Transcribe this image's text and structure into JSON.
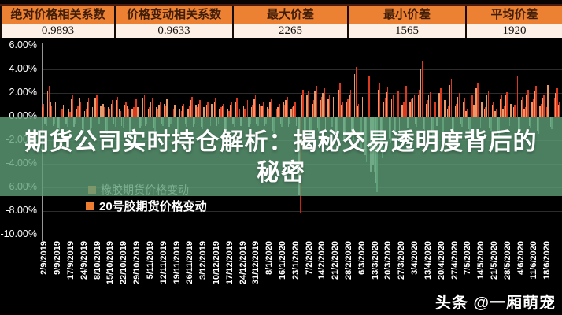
{
  "stats_table": {
    "columns": [
      {
        "label": "绝对价格相关系数",
        "value": "0.9893"
      },
      {
        "label": "价格变动相关系数",
        "value": "0.9633"
      },
      {
        "label": "最大价差",
        "value": "2265"
      },
      {
        "label": "最小价差",
        "value": "1565"
      },
      {
        "label": "平均价差",
        "value": "1920"
      }
    ],
    "header_bg": "#ec8133",
    "value_bg": "#fdf1e7"
  },
  "overlay": {
    "title_line1": "期货公司实时持仓解析：揭秘交易透明度背后的",
    "title_line2": "秘密",
    "band_color": "#5f9e78"
  },
  "watermark": {
    "text": "头条 @一厢萌宠"
  },
  "chart_data": {
    "type": "bar",
    "title": "",
    "xlabel": "",
    "ylabel": "",
    "ylim": [
      -10,
      6
    ],
    "grid": true,
    "legend_position": "bottom-left",
    "ytick_values": [
      6,
      4,
      2,
      0,
      -2,
      -4,
      -6,
      -8,
      -10
    ],
    "ytick_labels": [
      "6.00%",
      "4.00%",
      "2.00%",
      "0.00%",
      "-2.00%",
      "-4.00%",
      "-6.00%",
      "-8.00%",
      "-10.00%"
    ],
    "xtick_labels": [
      "2/9/2019",
      "9/9/2019",
      "17/9/2019",
      "24/9/2019",
      "8/10/2019",
      "15/10/2019",
      "22/10/2019",
      "29/10/2019",
      "5/11/2019",
      "12/11/2019",
      "19/11/2019",
      "26/11/2019",
      "3/12/2019",
      "10/12/2019",
      "17/12/2019",
      "24/12/2019",
      "31/12/2019",
      "8/1/2020",
      "16/1/2020",
      "23/1/2020",
      "7/2/2020",
      "14/2/2020",
      "21/2/2020",
      "28/2/2020",
      "6/3/2020",
      "13/3/2020",
      "20/3/2020",
      "27/3/2020",
      "3/4/2020",
      "13/4/2020",
      "20/4/2020",
      "27/4/2020",
      "7/5/2020",
      "14/5/2020",
      "21/5/2020",
      "28/5/2020",
      "4/6/2020",
      "11/6/2020",
      "18/6/2020"
    ],
    "days_per_tick": 5,
    "series": [
      {
        "name": "橡胶期货价格变动",
        "up_color": "#e69a6b",
        "down_color": "#b7dabc",
        "marker_color": "#ed7d31",
        "values": [
          0.8,
          -0.5,
          2.2,
          1.2,
          -0.7,
          1.2,
          -0.9,
          0.9,
          1.0,
          -0.6,
          0.6,
          1.5,
          -0.8,
          0.7,
          1.6,
          -1.0,
          0.5,
          1.3,
          -1.2,
          0.8,
          1.6,
          -0.8,
          0.9,
          1.1,
          -1.1,
          0.8,
          1.1,
          -0.6,
          1.4,
          0.7,
          -0.7,
          1.0,
          0.9,
          -1.3,
          0.6,
          1.2,
          0.8,
          -0.9,
          1.6,
          -0.7,
          0.6,
          1.3,
          -0.9,
          0.8,
          1.0,
          -0.5,
          1.1,
          1.5,
          -0.8,
          0.9,
          1.0,
          -1.2,
          0.7,
          0.9,
          -0.6,
          0.7,
          1.4,
          -0.8,
          1.0,
          1.1,
          -0.8,
          0.8,
          1.0,
          -0.5,
          1.1,
          1.3,
          -0.7,
          0.6,
          0.9,
          -1.0,
          0.7,
          1.0,
          -0.6,
          1.3,
          0.8,
          -0.7,
          0.9,
          1.1,
          -0.8,
          0.8,
          1.5,
          -0.5,
          1.1,
          0.9,
          -0.7,
          0.8,
          1.2,
          -1.1,
          0.9,
          0.8,
          -0.6,
          1.2,
          1.4,
          -0.8,
          0.6,
          0.9,
          -0.7,
          -6.6,
          1.9,
          -1.2,
          1.8,
          -1.5,
          1.1,
          2.2,
          -0.9,
          1.4,
          2.0,
          -1.1,
          1.5,
          -0.6,
          1.7,
          -1.3,
          2.3,
          1.0,
          -1.8,
          1.2,
          1.9,
          -1.6,
          3.6,
          0.9,
          -2.2,
          1.7,
          -3.2,
          2.9,
          -4.6,
          -4.0,
          -5.6,
          2.3,
          -2.9,
          1.3,
          2.1,
          -1.8,
          1.5,
          -1.1,
          1.8,
          -1.4,
          1.0,
          2.2,
          -0.9,
          1.2,
          1.6,
          -0.6,
          1.9,
          4.1,
          -1.0,
          1.1,
          1.8,
          -1.3,
          1.0,
          -0.7,
          2.0,
          -1.0,
          1.4,
          0.7,
          2.7,
          -1.2,
          0.9,
          1.7,
          -0.6,
          1.3,
          0.5,
          -1.0,
          1.6,
          1.0,
          2.4,
          -0.7,
          1.2,
          0.6,
          1.8,
          -0.9,
          1.0,
          0.5,
          -1.3,
          1.5,
          0.7,
          1.8,
          -0.5,
          1.1,
          0.8,
          3.0,
          -1.0,
          1.4,
          0.6,
          1.9,
          -0.7,
          1.2,
          2.2,
          -1.1,
          0.9,
          1.6,
          0.6,
          2.7,
          -0.8,
          1.3,
          2.0,
          1.0
        ]
      },
      {
        "name": "20号胶期货价格变动",
        "up_color": "#dc3a1e",
        "down_color": "#5fa97b",
        "marker_color": "#ed7d31",
        "values": [
          1.1,
          -0.7,
          2.6,
          0.9,
          -0.5,
          1.5,
          -1.1,
          0.6,
          1.2,
          -0.8,
          0.4,
          1.8,
          -0.6,
          0.9,
          1.3,
          -1.2,
          0.7,
          1.6,
          -0.9,
          0.5,
          1.9,
          -0.6,
          1.1,
          0.8,
          -1.4,
          0.6,
          1.4,
          -0.8,
          1.7,
          0.5,
          -0.9,
          1.2,
          0.7,
          -1.6,
          0.8,
          1.5,
          0.6,
          -0.7,
          1.9,
          -0.5,
          0.8,
          1.6,
          -1.1,
          0.6,
          1.2,
          -0.7,
          0.9,
          1.8,
          -0.6,
          0.7,
          1.3,
          -1.5,
          0.5,
          1.1,
          -0.8,
          0.9,
          1.7,
          -0.6,
          0.8,
          1.4,
          -1.0,
          0.6,
          1.2,
          -0.7,
          0.9,
          1.6,
          -0.5,
          0.8,
          1.1,
          -1.2,
          0.5,
          1.3,
          -0.8,
          1.6,
          0.6,
          -0.9,
          0.7,
          1.4,
          -0.6,
          1.0,
          1.8,
          -0.7,
          0.9,
          1.2,
          -0.5,
          0.6,
          1.5,
          -1.3,
          0.7,
          1.1,
          -0.8,
          1.0,
          1.7,
          -0.6,
          0.8,
          1.2,
          -0.9,
          -8.1,
          2.3,
          -1.5,
          2.2,
          -1.8,
          1.4,
          2.6,
          -1.1,
          1.7,
          2.4,
          -1.3,
          1.9,
          -0.8,
          2.1,
          -1.6,
          2.8,
          1.2,
          -2.2,
          1.5,
          2.3,
          -1.9,
          4.2,
          1.1,
          -2.6,
          2.1,
          -3.8,
          3.4,
          -5.2,
          -4.6,
          -6.3,
          2.8,
          -3.4,
          1.6,
          2.5,
          -2.1,
          1.8,
          -1.4,
          2.2,
          -1.7,
          1.3,
          2.6,
          -1.1,
          1.5,
          1.9,
          -0.8,
          2.3,
          4.7,
          -1.3,
          1.4,
          2.1,
          -1.6,
          1.2,
          -0.9,
          2.4,
          -1.2,
          1.7,
          0.9,
          3.2,
          -1.5,
          1.1,
          2.0,
          -0.8,
          1.6,
          0.7,
          -1.3,
          1.9,
          1.2,
          2.8,
          -0.9,
          1.5,
          0.8,
          2.2,
          -1.1,
          1.3,
          0.6,
          -1.6,
          1.8,
          0.9,
          2.1,
          -0.7,
          1.4,
          1.0,
          3.5,
          -1.2,
          1.7,
          0.8,
          2.3,
          -0.9,
          1.5,
          2.6,
          -1.4,
          1.1,
          1.9,
          0.8,
          3.2,
          -1.0,
          1.6,
          2.4,
          1.2
        ]
      }
    ],
    "outliers": [
      {
        "series": 1,
        "index": 97,
        "color": "#cc2413"
      }
    ]
  }
}
